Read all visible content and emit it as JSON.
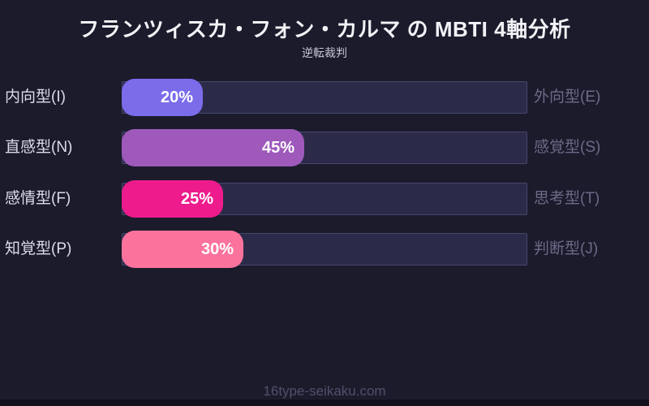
{
  "header": {
    "title": "フランツィスカ・フォン・カルマ の MBTI 4軸分析",
    "subtitle": "逆転裁判"
  },
  "footer": {
    "site": "16type-seikaku.com"
  },
  "colors": {
    "background": "#1b1b2c",
    "track": "#2b2b49",
    "track_border": "#46466b",
    "left_label": "#dcdce8",
    "right_label": "#6b6b88",
    "value_text": "#ffffff",
    "footer_text": "#50506b",
    "bottom_strip": "#12121f"
  },
  "chart_data": {
    "type": "bar",
    "orientation": "horizontal",
    "title": "フランツィスカ・フォン・カルマ の MBTI 4軸分析",
    "subtitle": "逆転裁判",
    "xlim": [
      0,
      100
    ],
    "grid": false,
    "legend": false,
    "rows": [
      {
        "axis": "I-E",
        "left_label": "内向型(I)",
        "right_label": "外向型(E)",
        "value": 20,
        "value_label": "20%",
        "color": "#7b6cea"
      },
      {
        "axis": "N-S",
        "left_label": "直感型(N)",
        "right_label": "感覚型(S)",
        "value": 45,
        "value_label": "45%",
        "color": "#9e59bb"
      },
      {
        "axis": "F-T",
        "left_label": "感情型(F)",
        "right_label": "思考型(T)",
        "value": 25,
        "value_label": "25%",
        "color": "#ee1b8d"
      },
      {
        "axis": "P-J",
        "left_label": "知覚型(P)",
        "right_label": "判断型(J)",
        "value": 30,
        "value_label": "30%",
        "color": "#fb739c"
      }
    ]
  }
}
